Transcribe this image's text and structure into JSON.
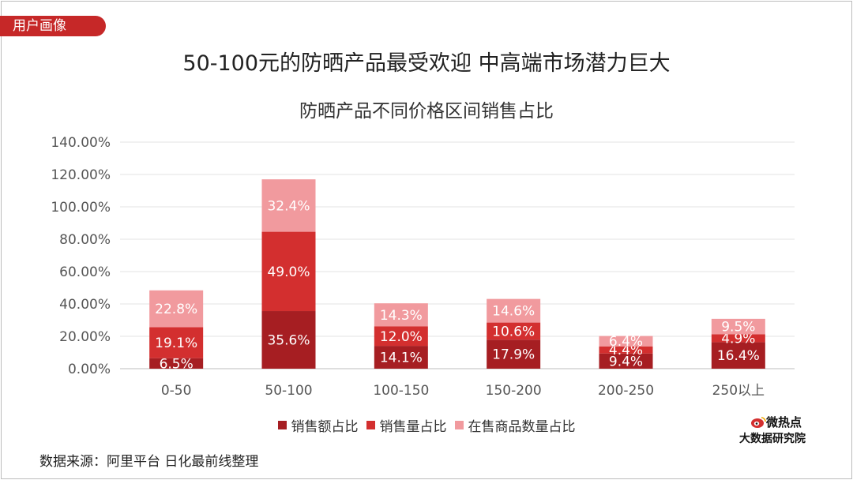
{
  "tag": "用户画像",
  "headline": "50-100元的防晒产品最受欢迎 中高端市场潜力巨大",
  "source": "数据来源：阿里平台 日化最前线整理",
  "brand": {
    "line1": "微热点",
    "line2": "大数据研究院",
    "icon": "weibo-eye-icon"
  },
  "colors": {
    "accent": "#c62828",
    "series": [
      "#a61e22",
      "#d32f2f",
      "#f19a9e"
    ]
  },
  "chart_data": {
    "type": "bar",
    "stacked": true,
    "title": "防晒产品不同价格区间销售占比",
    "xlabel": "",
    "ylabel": "",
    "ylim": [
      0,
      140
    ],
    "yticks": [
      "0.00%",
      "20.00%",
      "40.00%",
      "60.00%",
      "80.00%",
      "100.00%",
      "120.00%",
      "140.00%"
    ],
    "grid": true,
    "legend_position": "bottom",
    "categories": [
      "0-50",
      "50-100",
      "100-150",
      "150-200",
      "200-250",
      "250以上"
    ],
    "series": [
      {
        "name": "销售额占比",
        "values": [
          6.5,
          35.6,
          14.1,
          17.9,
          9.4,
          16.4
        ],
        "labels": [
          "6.5%",
          "35.6%",
          "14.1%",
          "17.9%",
          "9.4%",
          "16.4%"
        ]
      },
      {
        "name": "销售量占比",
        "values": [
          19.1,
          49.0,
          12.0,
          10.6,
          4.4,
          4.9
        ],
        "labels": [
          "19.1%",
          "49.0%",
          "12.0%",
          "10.6%",
          "4.4%",
          "4.9%"
        ]
      },
      {
        "name": "在售商品数量占比",
        "values": [
          22.8,
          32.4,
          14.3,
          14.6,
          6.4,
          9.5
        ],
        "labels": [
          "22.8%",
          "32.4%",
          "14.3%",
          "14.6%",
          "6.4%",
          "9.5%"
        ]
      }
    ]
  }
}
